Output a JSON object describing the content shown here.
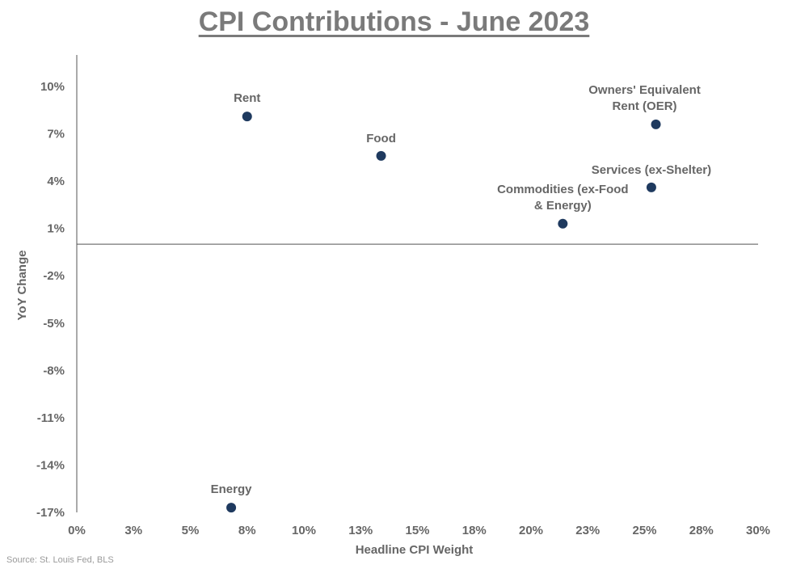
{
  "chart_data": {
    "type": "scatter",
    "title": "CPI Contributions - June 2023",
    "xlabel": "Headline CPI Weight",
    "ylabel": "YoY Change",
    "xlim": [
      0,
      30
    ],
    "ylim": [
      -17,
      11
    ],
    "x_ticks": [
      "0%",
      "3%",
      "5%",
      "8%",
      "10%",
      "13%",
      "15%",
      "18%",
      "20%",
      "23%",
      "25%",
      "28%",
      "30%"
    ],
    "y_ticks": [
      "10%",
      "7%",
      "4%",
      "1%",
      "-2%",
      "-5%",
      "-8%",
      "-11%",
      "-14%",
      "-17%"
    ],
    "grid": false,
    "point_color": "#1f3a5f",
    "points": [
      {
        "label": "Rent",
        "x": 7.5,
        "y": 8.1
      },
      {
        "label": "Food",
        "x": 13.4,
        "y": 5.6
      },
      {
        "label": "Owners' Equivalent Rent (OER)",
        "x": 25.5,
        "y": 7.6
      },
      {
        "label": "Services (ex-Shelter)",
        "x": 25.3,
        "y": 3.6
      },
      {
        "label": "Commodities (ex-Food & Energy)",
        "x": 21.4,
        "y": 1.3
      },
      {
        "label": "Energy",
        "x": 6.8,
        "y": -16.7
      }
    ]
  },
  "source": "Source: St. Louis Fed, BLS"
}
